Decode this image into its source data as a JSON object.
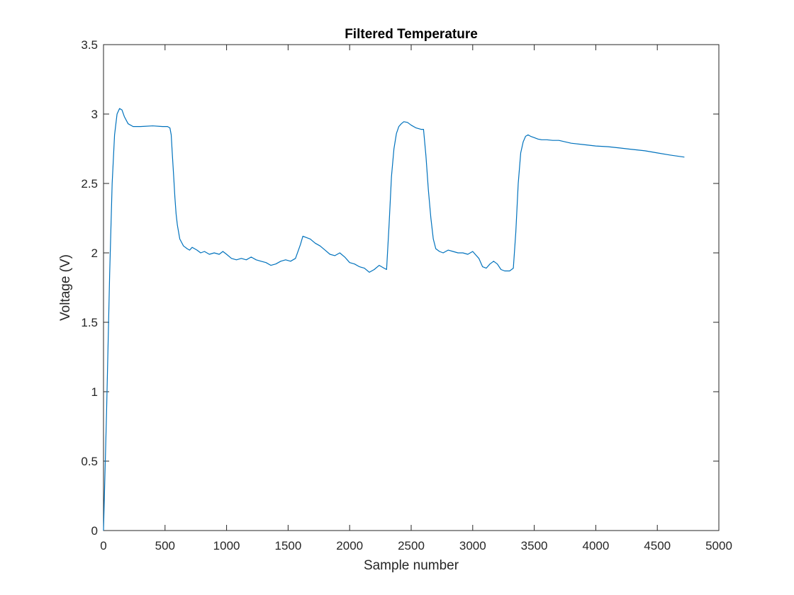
{
  "chart_data": {
    "type": "line",
    "title": "Filtered Temperature",
    "xlabel": "Sample number",
    "ylabel": "Voltage (V)",
    "xlim": [
      0,
      5000
    ],
    "ylim": [
      0,
      3.5
    ],
    "xticks": [
      0,
      500,
      1000,
      1500,
      2000,
      2500,
      3000,
      3500,
      4000,
      4500,
      5000
    ],
    "xtick_labels": [
      "0",
      "500",
      "1000",
      "1500",
      "2000",
      "2500",
      "3000",
      "3500",
      "4000",
      "4500",
      "5000"
    ],
    "yticks": [
      0,
      0.5,
      1,
      1.5,
      2,
      2.5,
      3,
      3.5
    ],
    "ytick_labels": [
      "0",
      "0.5",
      "1",
      "1.5",
      "2",
      "2.5",
      "3",
      "3.5"
    ],
    "grid": false,
    "colors": {
      "line": "#0072BD",
      "axes": "#262626",
      "background": "#ffffff"
    },
    "series": [
      {
        "x": [
          0,
          25,
          50,
          70,
          90,
          110,
          130,
          150,
          170,
          200,
          240,
          300,
          400,
          480,
          520,
          540,
          550,
          560,
          570,
          580,
          590,
          600,
          620,
          650,
          680,
          700,
          720,
          740,
          760,
          790,
          820,
          860,
          900,
          940,
          970,
          1000,
          1040,
          1080,
          1120,
          1160,
          1200,
          1240,
          1280,
          1320,
          1360,
          1400,
          1440,
          1480,
          1520,
          1560,
          1600,
          1620,
          1650,
          1680,
          1720,
          1760,
          1800,
          1840,
          1880,
          1920,
          1960,
          2000,
          2040,
          2080,
          2120,
          2160,
          2200,
          2240,
          2280,
          2300,
          2320,
          2340,
          2360,
          2380,
          2400,
          2420,
          2440,
          2470,
          2500,
          2540,
          2580,
          2600,
          2620,
          2640,
          2660,
          2680,
          2700,
          2730,
          2760,
          2800,
          2840,
          2880,
          2920,
          2960,
          3000,
          3020,
          3050,
          3080,
          3110,
          3140,
          3170,
          3200,
          3230,
          3260,
          3300,
          3330,
          3350,
          3370,
          3390,
          3410,
          3430,
          3450,
          3470,
          3500,
          3530,
          3560,
          3600,
          3650,
          3700,
          3750,
          3800,
          3900,
          4000,
          4100,
          4200,
          4300,
          4400,
          4500,
          4600,
          4720
        ],
        "y": [
          0,
          0.85,
          1.85,
          2.5,
          2.85,
          3.0,
          3.04,
          3.03,
          2.98,
          2.93,
          2.91,
          2.91,
          2.915,
          2.91,
          2.91,
          2.9,
          2.85,
          2.7,
          2.55,
          2.4,
          2.28,
          2.2,
          2.1,
          2.05,
          2.03,
          2.02,
          2.04,
          2.03,
          2.02,
          2.0,
          2.01,
          1.99,
          2.0,
          1.99,
          2.01,
          1.99,
          1.96,
          1.95,
          1.96,
          1.95,
          1.97,
          1.95,
          1.94,
          1.93,
          1.91,
          1.92,
          1.94,
          1.95,
          1.94,
          1.96,
          2.06,
          2.12,
          2.11,
          2.1,
          2.07,
          2.05,
          2.02,
          1.99,
          1.98,
          2.0,
          1.97,
          1.93,
          1.92,
          1.9,
          1.89,
          1.86,
          1.88,
          1.91,
          1.89,
          1.88,
          2.2,
          2.55,
          2.75,
          2.86,
          2.91,
          2.93,
          2.945,
          2.94,
          2.92,
          2.9,
          2.89,
          2.89,
          2.7,
          2.45,
          2.25,
          2.1,
          2.03,
          2.01,
          2.0,
          2.02,
          2.01,
          2.0,
          2.0,
          1.99,
          2.01,
          1.99,
          1.96,
          1.9,
          1.89,
          1.92,
          1.94,
          1.92,
          1.88,
          1.87,
          1.87,
          1.89,
          2.15,
          2.5,
          2.72,
          2.8,
          2.84,
          2.85,
          2.84,
          2.83,
          2.82,
          2.815,
          2.815,
          2.81,
          2.81,
          2.8,
          2.79,
          2.78,
          2.77,
          2.765,
          2.755,
          2.745,
          2.735,
          2.72,
          2.705,
          2.69
        ]
      }
    ]
  }
}
